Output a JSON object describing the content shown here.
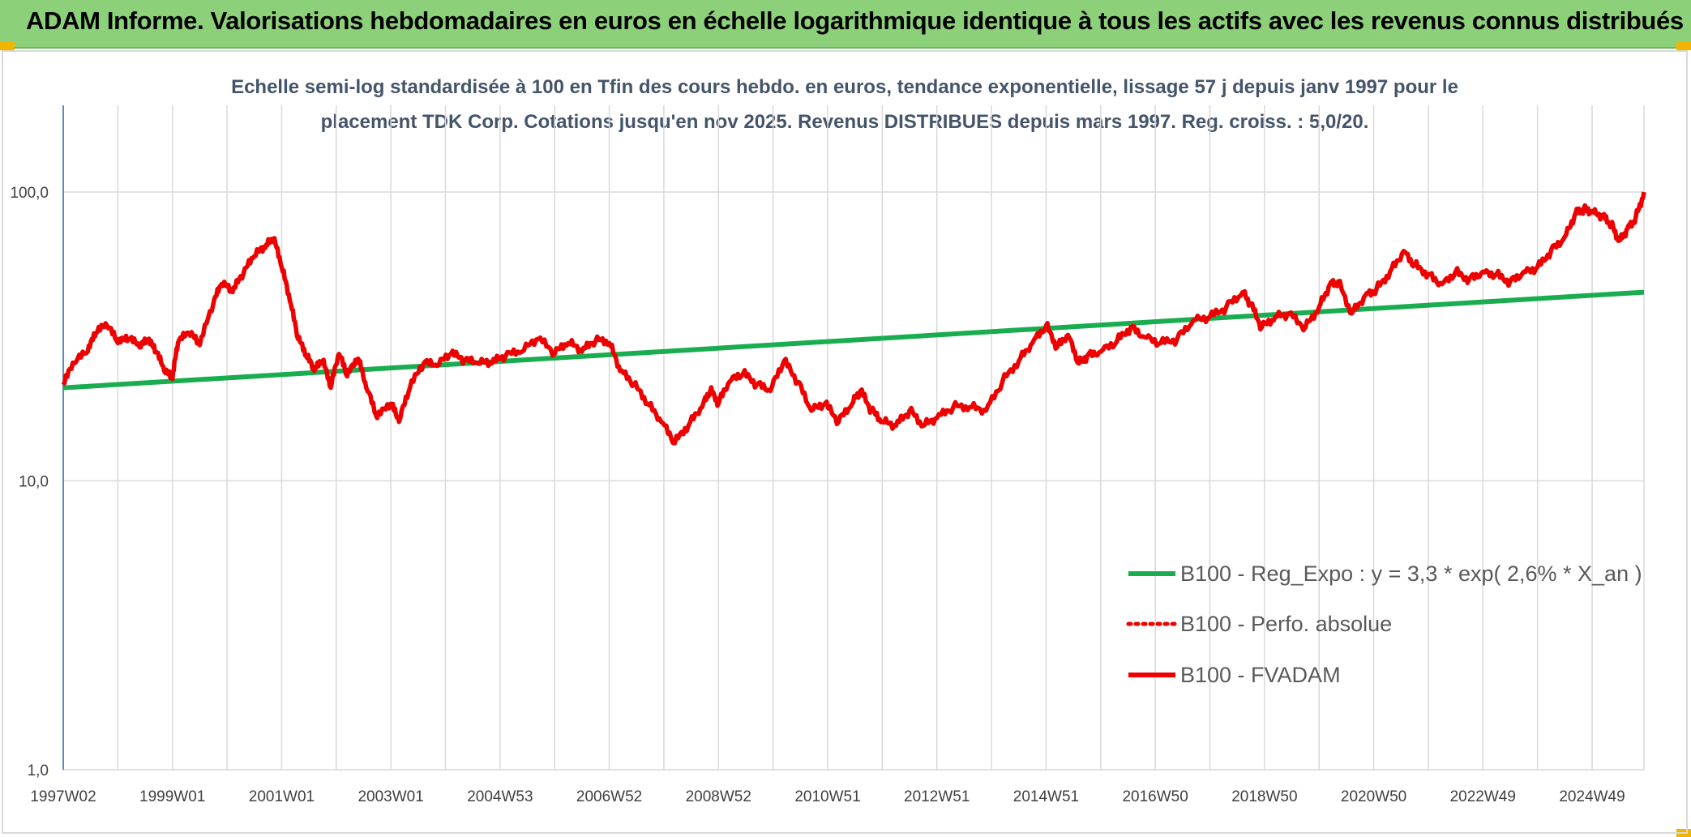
{
  "header": {
    "title": "ADAM Informe. Valorisations hebdomadaires en euros en échelle logarithmique identique à tous les actifs avec les revenus connus distribués"
  },
  "colors": {
    "header_bg": "#8dd07a",
    "regression": "#1aad50",
    "fvadam": "#ee0000",
    "subtitle": "#44546a",
    "grid": "#d9d9d9"
  },
  "chart_data": {
    "type": "line",
    "title_lines": [
      "Echelle semi-log standardisée à 100 en Tfin des cours hebdo. en euros, tendance exponentielle, lissage 57 j depuis janv 1997 pour le",
      "placement TDK Corp. Cotations jusqu'en nov 2025. Revenus DISTRIBUES depuis mars 1997. Reg. croiss. : 5,0/20."
    ],
    "y_scale": "log",
    "ylim": [
      1,
      200
    ],
    "y_ticks": [
      {
        "value": 1,
        "label": "1,0"
      },
      {
        "value": 10,
        "label": "10,0"
      },
      {
        "value": 100,
        "label": "100,0"
      }
    ],
    "xlim": [
      1997.0,
      2025.95
    ],
    "x_ticks": [
      {
        "value": 1997.0,
        "label": "1997W02"
      },
      {
        "value": 1999.0,
        "label": "1999W01"
      },
      {
        "value": 2001.0,
        "label": "2001W01"
      },
      {
        "value": 2003.0,
        "label": "2003W01"
      },
      {
        "value": 2005.0,
        "label": "2004W53"
      },
      {
        "value": 2007.0,
        "label": "2006W52"
      },
      {
        "value": 2009.0,
        "label": "2008W52"
      },
      {
        "value": 2011.0,
        "label": "2010W51"
      },
      {
        "value": 2013.0,
        "label": "2012W51"
      },
      {
        "value": 2015.0,
        "label": "2014W51"
      },
      {
        "value": 2017.0,
        "label": "2016W50"
      },
      {
        "value": 2019.0,
        "label": "2018W50"
      },
      {
        "value": 2021.0,
        "label": "2020W50"
      },
      {
        "value": 2023.0,
        "label": "2022W49"
      },
      {
        "value": 2025.0,
        "label": "2024W49"
      }
    ],
    "legend_position": "bottom-right",
    "series": [
      {
        "name": "B100 - Reg_Expo : y = 3,3 * exp( 2,6% *  X_an )",
        "style": "solid-green",
        "x": [
          1997.0,
          2025.95
        ],
        "y": [
          21.0,
          45.0
        ]
      },
      {
        "name": "B100 - Perfo. absolue",
        "style": "dotted-red",
        "x": [],
        "y": []
      },
      {
        "name": "B100 - FVADAM",
        "style": "solid-red",
        "x": [
          1997.0,
          1997.2,
          1997.45,
          1997.6,
          1997.8,
          1998.0,
          1998.2,
          1998.4,
          1998.55,
          1998.7,
          1998.85,
          1999.0,
          1999.1,
          1999.3,
          1999.5,
          1999.75,
          1999.9,
          2000.1,
          2000.3,
          2000.5,
          2000.7,
          2000.85,
          2001.0,
          2001.15,
          2001.3,
          2001.45,
          2001.6,
          2001.75,
          2001.9,
          2002.05,
          2002.2,
          2002.4,
          2002.55,
          2002.75,
          2003.0,
          2003.15,
          2003.35,
          2003.6,
          2003.85,
          2004.1,
          2004.35,
          2004.6,
          2004.85,
          2005.1,
          2005.4,
          2005.7,
          2006.0,
          2006.25,
          2006.5,
          2006.75,
          2007.0,
          2007.2,
          2007.45,
          2007.7,
          2007.95,
          2008.2,
          2008.45,
          2008.7,
          2008.85,
          2009.0,
          2009.2,
          2009.45,
          2009.7,
          2009.95,
          2010.2,
          2010.45,
          2010.7,
          2010.95,
          2011.2,
          2011.45,
          2011.6,
          2011.8,
          2012.0,
          2012.25,
          2012.5,
          2012.75,
          2013.0,
          2013.3,
          2013.6,
          2013.9,
          2014.2,
          2014.5,
          2014.75,
          2015.0,
          2015.2,
          2015.4,
          2015.6,
          2015.75,
          2016.0,
          2016.3,
          2016.55,
          2016.8,
          2017.1,
          2017.4,
          2017.7,
          2018.0,
          2018.3,
          2018.6,
          2018.75,
          2018.95,
          2019.2,
          2019.45,
          2019.75,
          2020.0,
          2020.2,
          2020.35,
          2020.6,
          2020.85,
          2021.05,
          2021.3,
          2021.55,
          2021.75,
          2022.0,
          2022.25,
          2022.5,
          2022.75,
          2023.0,
          2023.25,
          2023.5,
          2023.75,
          2024.0,
          2024.25,
          2024.5,
          2024.7,
          2024.85,
          2025.0,
          2025.2,
          2025.35,
          2025.5,
          2025.65,
          2025.8,
          2025.95
        ],
        "y": [
          21.5,
          25.5,
          28.0,
          32.5,
          34.5,
          30.0,
          31.0,
          29.0,
          30.5,
          28.0,
          24.0,
          22.5,
          30.0,
          32.5,
          29.5,
          41.0,
          48.0,
          45.0,
          52.0,
          60.0,
          64.0,
          69.0,
          55.0,
          42.0,
          31.0,
          27.0,
          24.0,
          26.0,
          21.0,
          27.5,
          23.0,
          26.5,
          21.0,
          16.5,
          18.5,
          16.0,
          21.0,
          25.5,
          25.0,
          27.5,
          26.0,
          25.5,
          25.5,
          27.0,
          28.0,
          31.0,
          27.5,
          30.0,
          28.0,
          30.5,
          30.0,
          24.0,
          21.5,
          18.5,
          16.0,
          13.5,
          15.5,
          18.0,
          20.5,
          18.5,
          22.0,
          23.5,
          21.5,
          20.5,
          26.0,
          22.0,
          17.5,
          18.5,
          16.0,
          18.5,
          20.5,
          17.5,
          16.0,
          15.5,
          17.5,
          15.5,
          16.5,
          18.0,
          18.0,
          17.5,
          22.0,
          26.0,
          30.0,
          34.5,
          29.0,
          32.0,
          25.5,
          27.0,
          28.0,
          30.5,
          34.0,
          31.5,
          30.0,
          31.0,
          36.0,
          37.0,
          40.0,
          45.0,
          41.0,
          34.0,
          37.0,
          38.0,
          34.0,
          40.0,
          48.0,
          49.0,
          38.0,
          44.0,
          46.0,
          53.0,
          62.5,
          56.0,
          52.0,
          48.0,
          53.0,
          50.0,
          53.0,
          52.0,
          49.0,
          53.0,
          55.0,
          63.0,
          70.0,
          85.0,
          88.0,
          86.0,
          83.0,
          78.0,
          68.0,
          75.0,
          82.0,
          100.0
        ]
      }
    ]
  }
}
